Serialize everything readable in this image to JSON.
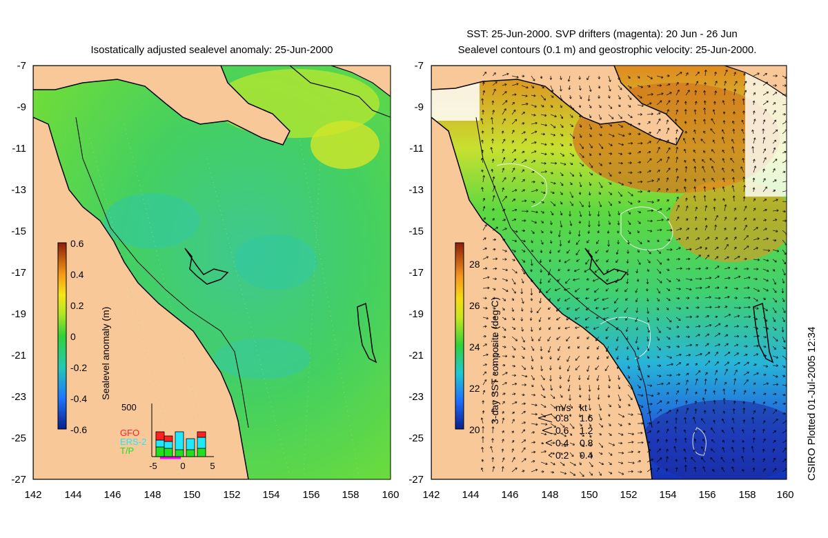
{
  "left_panel": {
    "title": "Isostatically adjusted sealevel anomaly: 25-Jun-2000",
    "colorbar": {
      "label": "Sealevel anomaly (m)",
      "ticks": [
        "0.6",
        "0.4",
        "0.2",
        "0",
        "-0.2",
        "-0.4",
        "-0.6"
      ],
      "min": -0.6,
      "max": 0.6
    },
    "histogram": {
      "ymax_label": "500",
      "legend": [
        {
          "label": "GFO",
          "color": "#ff2020"
        },
        {
          "label": "ERS-2",
          "color": "#20e8ff"
        },
        {
          "label": "T/P",
          "color": "#20e020"
        }
      ],
      "xticks": [
        "-5",
        "0",
        "5"
      ]
    }
  },
  "right_panel": {
    "title_line1": "SST: 25-Jun-2000. SVP drifters (magenta): 20 Jun - 26 Jun",
    "title_line2": "Sealevel contours (0.1 m) and geostrophic velocity: 25-Jun-2000.",
    "colorbar": {
      "label": "3-day SST composite (deg C)",
      "ticks": [
        "28",
        "26",
        "24",
        "22",
        "20"
      ],
      "min": 20,
      "max": 29
    },
    "velocity_legend": {
      "header_ms": "m/s",
      "header_kt": "kt",
      "rows": [
        {
          "ms": "0.8",
          "kt": "1.6"
        },
        {
          "ms": "0.6",
          "kt": "1.2"
        },
        {
          "ms": "0.4",
          "kt": "0.8"
        },
        {
          "ms": "0.2",
          "kt": "0.4"
        }
      ]
    }
  },
  "axes": {
    "lat_ticks": [
      "-7",
      "-9",
      "-11",
      "-13",
      "-15",
      "-17",
      "-19",
      "-21",
      "-23",
      "-25",
      "-27"
    ],
    "lon_ticks": [
      "142",
      "144",
      "146",
      "148",
      "150",
      "152",
      "154",
      "156",
      "158",
      "160"
    ]
  },
  "colors": {
    "land": "#f9c898",
    "coast": "#000000"
  },
  "footer": "CSIRO Plotted 01-Jul-2005 12:34"
}
